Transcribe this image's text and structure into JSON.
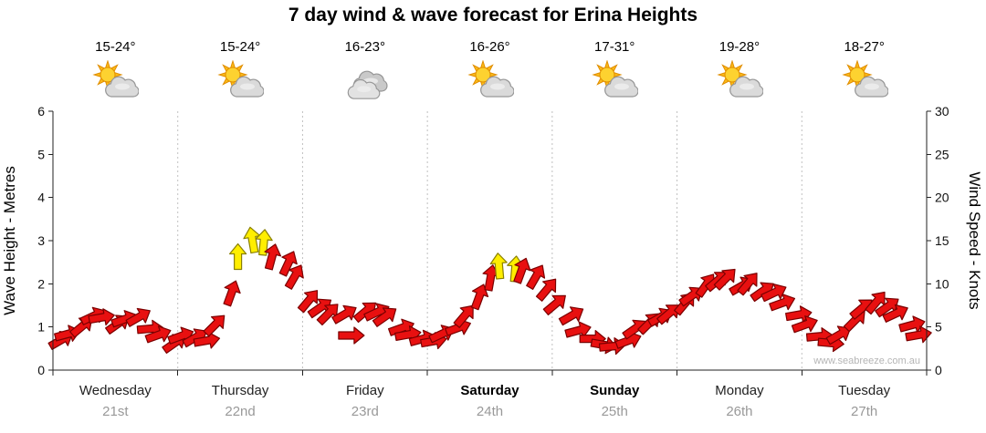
{
  "title": "7 day wind & wave forecast for Erina Heights",
  "watermark": "www.seabreeze.com.au",
  "left_axis": {
    "label": "Wave Height - Metres",
    "min": 0,
    "max": 6,
    "step": 1
  },
  "right_axis": {
    "label": "Wind Speed - Knots",
    "min": 0,
    "max": 30,
    "step": 5
  },
  "days": [
    {
      "name": "Wednesday",
      "date": "21st",
      "temp": "15-24°",
      "icon": "partly-cloudy",
      "weekend": false
    },
    {
      "name": "Thursday",
      "date": "22nd",
      "temp": "15-24°",
      "icon": "partly-cloudy",
      "weekend": false
    },
    {
      "name": "Friday",
      "date": "23rd",
      "temp": "16-23°",
      "icon": "cloudy",
      "weekend": false
    },
    {
      "name": "Saturday",
      "date": "24th",
      "temp": "16-26°",
      "icon": "partly-cloudy",
      "weekend": true
    },
    {
      "name": "Sunday",
      "date": "25th",
      "temp": "17-31°",
      "icon": "partly-cloudy",
      "weekend": true
    },
    {
      "name": "Monday",
      "date": "26th",
      "temp": "19-28°",
      "icon": "partly-cloudy",
      "weekend": false
    },
    {
      "name": "Tuesday",
      "date": "27th",
      "temp": "18-27°",
      "icon": "partly-cloudy",
      "weekend": false
    }
  ],
  "colors": {
    "arrow_red": "#E81010",
    "arrow_red_outline": "#7A0000",
    "arrow_yellow": "#FFEE00",
    "arrow_yellow_outline": "#8A8000",
    "grid": "#C0C0C0",
    "axis": "#222222",
    "date_label": "#999999"
  },
  "chart_data": {
    "type": "scatter",
    "subtype": "wind-arrows",
    "title": "7 day wind & wave forecast for Erina Heights",
    "categories": [
      "Wednesday 21st",
      "Thursday 22nd",
      "Friday 23rd",
      "Saturday 24th",
      "Sunday 25th",
      "Monday 26th",
      "Tuesday 27th"
    ],
    "y_left": {
      "label": "Wave Height - Metres",
      "range": [
        0,
        6
      ],
      "ticks": [
        0,
        1,
        2,
        3,
        4,
        5,
        6
      ]
    },
    "y_right": {
      "label": "Wind Speed - Knots",
      "range": [
        0,
        30
      ],
      "ticks": [
        0,
        5,
        10,
        15,
        20,
        25,
        30
      ]
    },
    "grid": "vertical-dotted-day-boundaries",
    "legend": "none",
    "points_columns": [
      "day_index",
      "fraction_of_day",
      "wind_speed_knots",
      "direction_deg",
      "color(r=red,y=yellow)"
    ],
    "points": [
      [
        0,
        0.045,
        3.5,
        60,
        "r"
      ],
      [
        0,
        0.136,
        4.5,
        75,
        "r"
      ],
      [
        0,
        0.227,
        5.5,
        50,
        "r"
      ],
      [
        0,
        0.318,
        6.5,
        65,
        "r"
      ],
      [
        0,
        0.409,
        6,
        80,
        "r"
      ],
      [
        0,
        0.5,
        5,
        55,
        "r"
      ],
      [
        0,
        0.591,
        5.5,
        70,
        "r"
      ],
      [
        0,
        0.682,
        6,
        60,
        "r"
      ],
      [
        0,
        0.773,
        5,
        85,
        "r"
      ],
      [
        0,
        0.864,
        4.5,
        70,
        "r"
      ],
      [
        0,
        0.955,
        3.5,
        55,
        "r"
      ],
      [
        1,
        0.045,
        4,
        70,
        "r"
      ],
      [
        1,
        0.136,
        3.5,
        60,
        "r"
      ],
      [
        1,
        0.227,
        3,
        80,
        "r"
      ],
      [
        1,
        0.318,
        5,
        45,
        "r"
      ],
      [
        1,
        0.409,
        9,
        20,
        "r"
      ],
      [
        1,
        0.5,
        13.5,
        0,
        "y"
      ],
      [
        1,
        0.591,
        15.5,
        -10,
        "y"
      ],
      [
        1,
        0.682,
        15,
        5,
        "y"
      ],
      [
        1,
        0.773,
        13,
        15,
        "r"
      ],
      [
        1,
        0.864,
        12,
        25,
        "r"
      ],
      [
        1,
        0.955,
        10.5,
        30,
        "r"
      ],
      [
        2,
        0.045,
        8,
        40,
        "r"
      ],
      [
        2,
        0.136,
        7.5,
        55,
        "r"
      ],
      [
        2,
        0.227,
        7,
        45,
        "r"
      ],
      [
        2,
        0.318,
        6.8,
        60,
        "r"
      ],
      [
        2,
        0.409,
        4,
        90,
        "r"
      ],
      [
        2,
        0.5,
        6.5,
        50,
        "r"
      ],
      [
        2,
        0.591,
        6.3,
        65,
        "r"
      ],
      [
        2,
        0.682,
        6,
        55,
        "r"
      ],
      [
        2,
        0.773,
        5,
        70,
        "r"
      ],
      [
        2,
        0.864,
        4.5,
        80,
        "r"
      ],
      [
        2,
        0.955,
        4,
        75,
        "r"
      ],
      [
        3,
        0.045,
        3.5,
        80,
        "r"
      ],
      [
        3,
        0.136,
        4,
        65,
        "r"
      ],
      [
        3,
        0.227,
        4.5,
        70,
        "r"
      ],
      [
        3,
        0.318,
        6,
        40,
        "r"
      ],
      [
        3,
        0.409,
        8.5,
        20,
        "r"
      ],
      [
        3,
        0.5,
        11,
        10,
        "r"
      ],
      [
        3,
        0.591,
        12.5,
        -5,
        "y"
      ],
      [
        3,
        0.682,
        12,
        5,
        "y"
      ],
      [
        3,
        0.773,
        11.5,
        20,
        "r"
      ],
      [
        3,
        0.864,
        10.5,
        30,
        "r"
      ],
      [
        3,
        0.955,
        9,
        40,
        "r"
      ],
      [
        4,
        0.045,
        7.5,
        50,
        "r"
      ],
      [
        4,
        0.136,
        6.5,
        60,
        "r"
      ],
      [
        4,
        0.227,
        5,
        75,
        "r"
      ],
      [
        4,
        0.318,
        4,
        90,
        "r"
      ],
      [
        4,
        0.409,
        3,
        100,
        "r"
      ],
      [
        4,
        0.5,
        2.5,
        85,
        "r"
      ],
      [
        4,
        0.591,
        3,
        70,
        "r"
      ],
      [
        4,
        0.682,
        4.5,
        55,
        "r"
      ],
      [
        4,
        0.773,
        5.5,
        45,
        "r"
      ],
      [
        4,
        0.864,
        6.5,
        60,
        "r"
      ],
      [
        4,
        0.955,
        7,
        50,
        "r"
      ],
      [
        5,
        0.045,
        8,
        40,
        "r"
      ],
      [
        5,
        0.136,
        8.5,
        55,
        "r"
      ],
      [
        5,
        0.227,
        9.5,
        35,
        "r"
      ],
      [
        5,
        0.318,
        10,
        50,
        "r"
      ],
      [
        5,
        0.409,
        10.5,
        45,
        "r"
      ],
      [
        5,
        0.5,
        10,
        60,
        "r"
      ],
      [
        5,
        0.591,
        10.5,
        40,
        "r"
      ],
      [
        5,
        0.682,
        9.5,
        55,
        "r"
      ],
      [
        5,
        0.773,
        9,
        65,
        "r"
      ],
      [
        5,
        0.864,
        7.5,
        70,
        "r"
      ],
      [
        5,
        0.955,
        6,
        80,
        "r"
      ],
      [
        6,
        0.045,
        5,
        70,
        "r"
      ],
      [
        6,
        0.136,
        4,
        85,
        "r"
      ],
      [
        6,
        0.227,
        3.5,
        95,
        "r"
      ],
      [
        6,
        0.318,
        4.5,
        60,
        "r"
      ],
      [
        6,
        0.409,
        6,
        45,
        "r"
      ],
      [
        6,
        0.5,
        7,
        50,
        "r"
      ],
      [
        6,
        0.591,
        7.5,
        40,
        "r"
      ],
      [
        6,
        0.682,
        7,
        55,
        "r"
      ],
      [
        6,
        0.773,
        6.5,
        65,
        "r"
      ],
      [
        6,
        0.864,
        5.5,
        75,
        "r"
      ],
      [
        6,
        0.955,
        4.5,
        80,
        "r"
      ]
    ]
  }
}
